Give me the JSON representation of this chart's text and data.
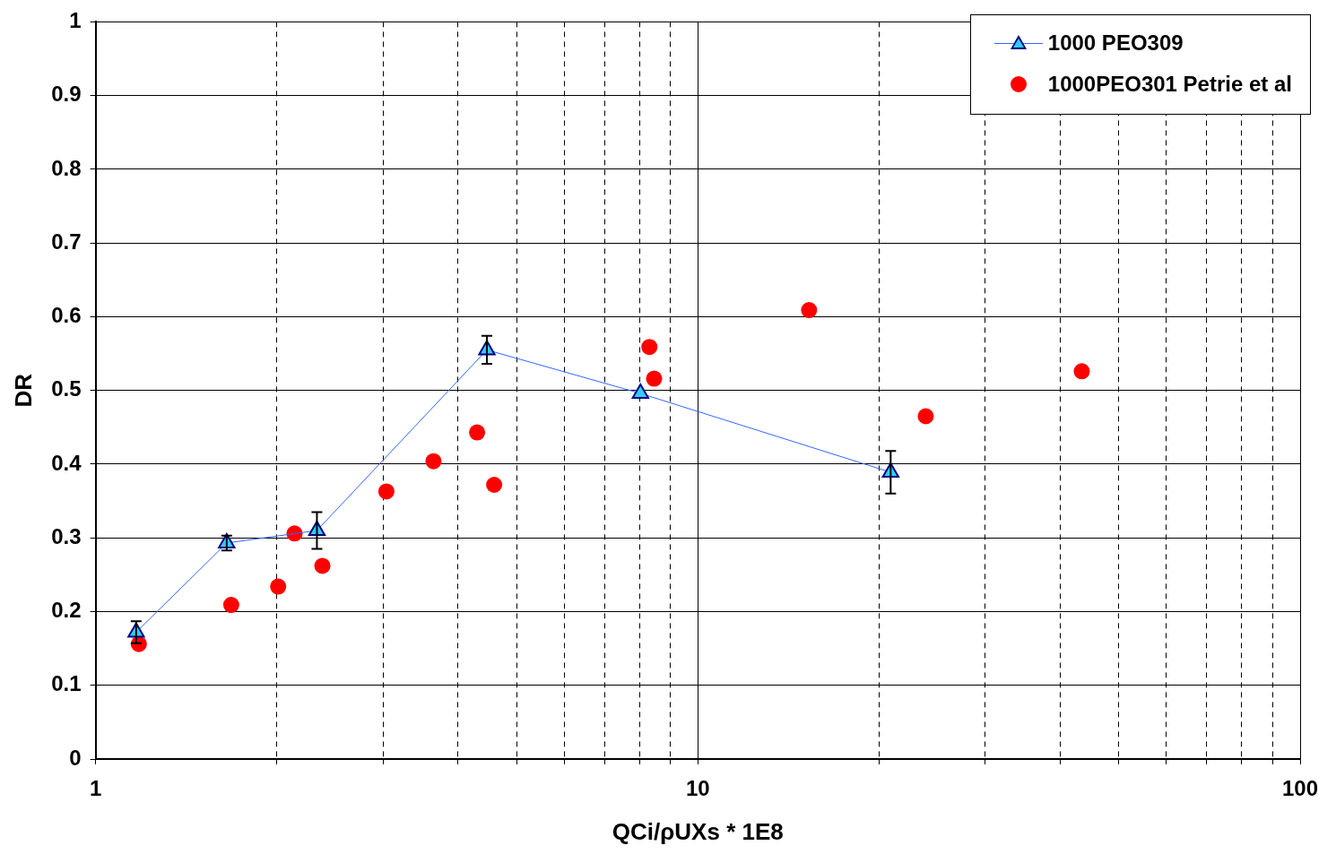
{
  "chart_data": {
    "type": "scatter",
    "xlabel": "QCi/ρUXs * 1E8",
    "ylabel": "DR",
    "log": "x",
    "grid": true,
    "legend": "top right",
    "xlim": [
      1,
      100
    ],
    "xticks": [
      1,
      {
        "value": 2,
        "label": null
      },
      {
        "value": 3,
        "label": null
      },
      {
        "value": 4,
        "label": null
      },
      {
        "value": 5,
        "label": null
      },
      {
        "value": 6,
        "label": null
      },
      {
        "value": 7,
        "label": null
      },
      {
        "value": 8,
        "label": null
      },
      {
        "value": 9,
        "label": null
      },
      10,
      {
        "value": 20,
        "label": null
      },
      {
        "value": 30,
        "label": null
      },
      {
        "value": 40,
        "label": null
      },
      {
        "value": 50,
        "label": null
      },
      {
        "value": 60,
        "label": null
      },
      {
        "value": 70,
        "label": null
      },
      {
        "value": 80,
        "label": null
      },
      {
        "value": 90,
        "label": null
      },
      100
    ],
    "ylim": [
      0,
      1
    ],
    "yticks": [
      0,
      0.1,
      0.2,
      0.3,
      0.4,
      0.5,
      0.6,
      0.7,
      0.8,
      0.9,
      1
    ],
    "series": [
      {
        "name": "1000 PEO309",
        "type": "line",
        "marker": "triangle",
        "line_style": "solid",
        "color": "#3366ff",
        "x": [
          1.168,
          1.651,
          2.331,
          4.464,
          8.03,
          20.9
        ],
        "values": [
          0.172,
          0.293,
          0.31,
          0.555,
          0.496,
          0.389
        ],
        "errors": [
          0.015,
          0.01,
          0.025,
          0.019,
          null,
          0.029
        ]
      },
      {
        "name": "1000PEO301 Petrie et al",
        "type": "scatter",
        "marker": "circle",
        "color": "#ff0000",
        "x": [
          1.18,
          1.68,
          2.01,
          2.14,
          2.38,
          3.04,
          3.64,
          4.3,
          4.59,
          8.31,
          8.46,
          15.3,
          23.9,
          43.4
        ],
        "values": [
          0.156,
          0.209,
          0.234,
          0.306,
          0.262,
          0.363,
          0.404,
          0.443,
          0.372,
          0.559,
          0.516,
          0.609,
          0.465,
          0.526
        ]
      }
    ]
  }
}
